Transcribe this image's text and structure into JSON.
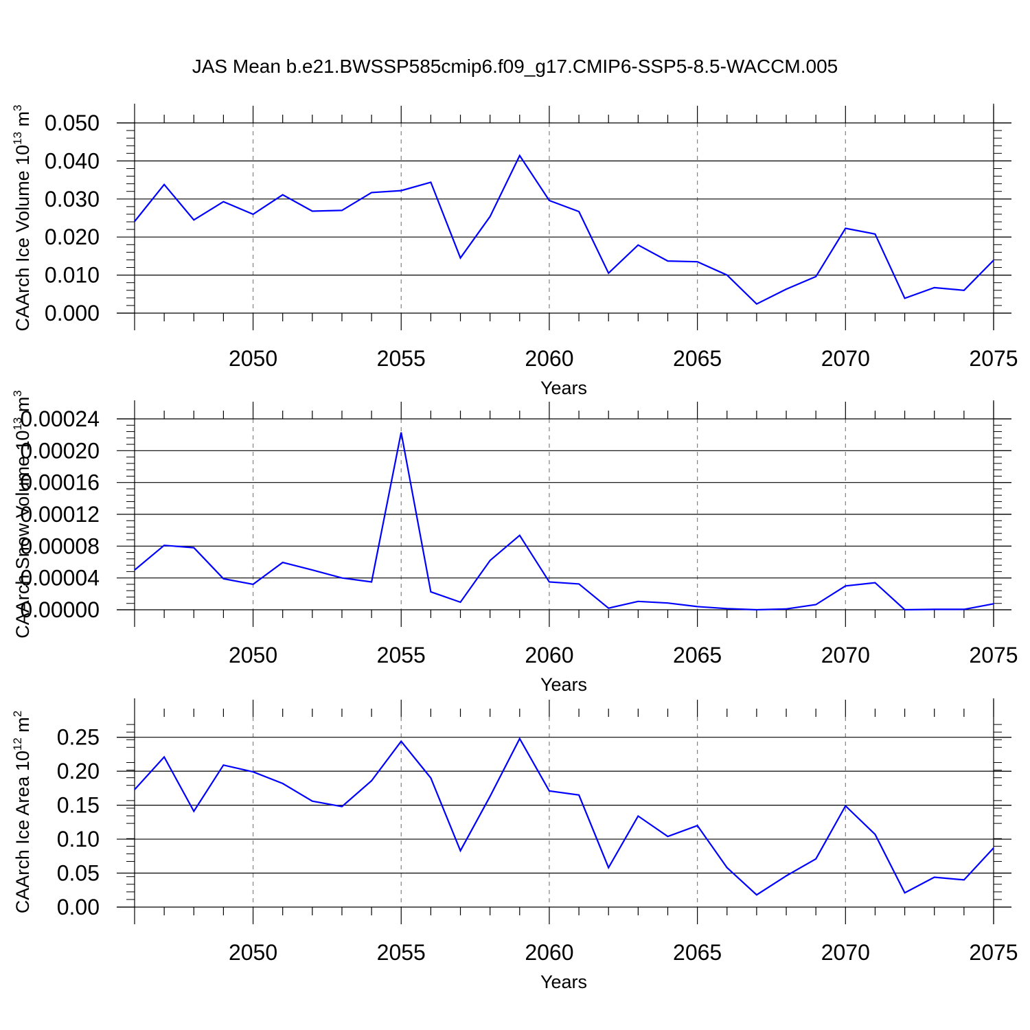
{
  "title": "JAS Mean b.e21.BWSSP585cmip6.f09_g17.CMIP6-SSP5-8.5-WACCM.005",
  "colors": {
    "line": "#0000ff",
    "frame": "#000000",
    "grid": "#808080"
  },
  "chart_data": [
    {
      "type": "line",
      "xlabel": "Years",
      "ylabel": {
        "prefix": "CAArch Ice Volume 10",
        "exponent": "13",
        "unit": " m",
        "unit_exponent": "3"
      },
      "xlim": [
        2046,
        2075
      ],
      "ylim": [
        0.0,
        0.05
      ],
      "x_ticks": [
        "2050",
        "2055",
        "2060",
        "2065",
        "2070",
        "2075"
      ],
      "y_ticks": [
        "0.000",
        "0.010",
        "0.020",
        "0.030",
        "0.040",
        "0.050"
      ],
      "grid": "vertical dashed at major x ticks",
      "x": [
        2046,
        2047,
        2048,
        2049,
        2050,
        2051,
        2052,
        2053,
        2054,
        2055,
        2056,
        2057,
        2058,
        2059,
        2060,
        2061,
        2062,
        2063,
        2064,
        2065,
        2066,
        2067,
        2068,
        2069,
        2070,
        2071,
        2072,
        2073,
        2074,
        2075
      ],
      "y": [
        0.0241,
        0.0338,
        0.0245,
        0.0293,
        0.026,
        0.0311,
        0.0268,
        0.027,
        0.0317,
        0.0322,
        0.0344,
        0.0145,
        0.0254,
        0.0414,
        0.0296,
        0.0267,
        0.0105,
        0.0179,
        0.0137,
        0.0135,
        0.01,
        0.0024,
        0.0063,
        0.0096,
        0.0223,
        0.0208,
        0.0039,
        0.0067,
        0.006,
        0.0139
      ]
    },
    {
      "type": "line",
      "xlabel": "Years",
      "ylabel": {
        "prefix": "CAArch Snow Volume 10",
        "exponent": "13",
        "unit": " m",
        "unit_exponent": "3"
      },
      "xlim": [
        2046,
        2075
      ],
      "ylim": [
        0.0,
        0.00024
      ],
      "x_ticks": [
        "2050",
        "2055",
        "2060",
        "2065",
        "2070",
        "2075"
      ],
      "y_ticks": [
        "0.00000",
        "0.00004",
        "0.00008",
        "0.00012",
        "0.00016",
        "0.00020",
        "0.00024"
      ],
      "grid": "vertical dashed at major x ticks",
      "x": [
        2046,
        2047,
        2048,
        2049,
        2050,
        2051,
        2052,
        2053,
        2054,
        2055,
        2056,
        2057,
        2058,
        2059,
        2060,
        2061,
        2062,
        2063,
        2064,
        2065,
        2066,
        2067,
        2068,
        2069,
        2070,
        2071,
        2072,
        2073,
        2074,
        2075
      ],
      "y": [
        5e-05,
        8.1e-05,
        7.8e-05,
        3.9e-05,
        3.2e-05,
        5.95e-05,
        5e-05,
        4e-05,
        3.5e-05,
        0.000223,
        2.25e-05,
        9.5e-06,
        6.2e-05,
        9.35e-05,
        3.5e-05,
        3.25e-05,
        2e-06,
        1.05e-05,
        8.5e-06,
        4e-06,
        1.5e-06,
        0.0,
        1e-06,
        6.5e-06,
        3e-05,
        3.4e-05,
        0.0,
        5e-07,
        5e-07,
        7.5e-06
      ]
    },
    {
      "type": "line",
      "xlabel": "Years",
      "ylabel": {
        "prefix": "CAArch Ice Area 10",
        "exponent": "12",
        "unit": " m",
        "unit_exponent": "2"
      },
      "xlim": [
        2046,
        2075
      ],
      "ylim": [
        0.0,
        0.28
      ],
      "x_ticks": [
        "2050",
        "2055",
        "2060",
        "2065",
        "2070",
        "2075"
      ],
      "y_ticks": [
        "0.00",
        "0.05",
        "0.10",
        "0.15",
        "0.20",
        "0.25"
      ],
      "grid": "vertical dashed at major x ticks",
      "x": [
        2046,
        2047,
        2048,
        2049,
        2050,
        2051,
        2052,
        2053,
        2054,
        2055,
        2056,
        2057,
        2058,
        2059,
        2060,
        2061,
        2062,
        2063,
        2064,
        2065,
        2066,
        2067,
        2068,
        2069,
        2070,
        2071,
        2072,
        2073,
        2074,
        2075
      ],
      "y": [
        0.173,
        0.221,
        0.141,
        0.209,
        0.199,
        0.182,
        0.156,
        0.148,
        0.186,
        0.244,
        0.19,
        0.083,
        0.163,
        0.248,
        0.171,
        0.165,
        0.058,
        0.134,
        0.104,
        0.12,
        0.058,
        0.018,
        0.046,
        0.071,
        0.149,
        0.107,
        0.021,
        0.044,
        0.04,
        0.087
      ]
    }
  ]
}
